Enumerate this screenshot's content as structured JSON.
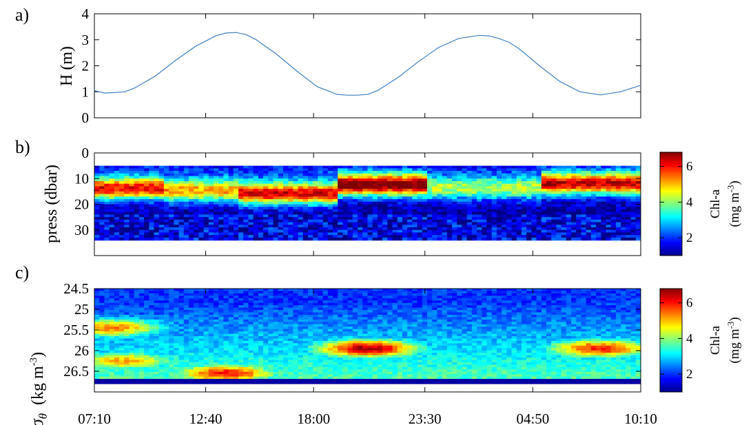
{
  "panel_labels": [
    "a)",
    "b)",
    "c)"
  ],
  "x_tick_labels": [
    "07:10",
    "12:40",
    "18:00",
    "23:30",
    "04:50",
    "10:10"
  ],
  "colorbar": {
    "label_line1": "Chl-a",
    "label_line2": "(mg m",
    "label_exp": "-3",
    "label_close": ")",
    "ticks": [
      "2",
      "4",
      "6"
    ],
    "range": [
      1,
      6.8
    ]
  },
  "chart_data": [
    {
      "type": "line",
      "panel": "a)",
      "ylabel": "H (m)",
      "ylim": [
        0,
        4
      ],
      "yticks": [
        "0",
        "1",
        "2",
        "3",
        "4"
      ],
      "x_hours": [
        0,
        0.5,
        1,
        1.5,
        2,
        3,
        4,
        5,
        6,
        6.5,
        7,
        7.5,
        8,
        9,
        10,
        11,
        12,
        12.5,
        13,
        13.5,
        14,
        15,
        16,
        17,
        18,
        19,
        19.5,
        20,
        20.5,
        21,
        22,
        23,
        24,
        25,
        26,
        27
      ],
      "values": [
        1.05,
        0.95,
        0.97,
        1.0,
        1.15,
        1.6,
        2.2,
        2.75,
        3.15,
        3.26,
        3.28,
        3.2,
        3.0,
        2.45,
        1.8,
        1.2,
        0.9,
        0.87,
        0.87,
        0.9,
        1.05,
        1.55,
        2.15,
        2.7,
        3.05,
        3.17,
        3.15,
        3.05,
        2.9,
        2.65,
        2.0,
        1.4,
        1.0,
        0.88,
        1.0,
        1.25
      ],
      "color": "#3d7fbf"
    },
    {
      "type": "heatmap",
      "panel": "b)",
      "ylabel": "press (dbar)",
      "ylim": [
        0,
        40
      ],
      "yticks": [
        "0",
        "10",
        "20",
        "30"
      ],
      "depth_range": [
        5,
        34
      ],
      "bands": [
        {
          "start": 0,
          "end": 3.5,
          "center": 14,
          "peak": 5.5
        },
        {
          "start": 3.5,
          "end": 7,
          "center": 15,
          "peak": 4.6
        },
        {
          "start": 7,
          "end": 12,
          "center": 16,
          "peak": 5.8
        },
        {
          "start": 12,
          "end": 16.5,
          "center": 12.5,
          "peak": 6.3
        },
        {
          "start": 16.5,
          "end": 22,
          "center": 14,
          "peak": 3.6
        },
        {
          "start": 22,
          "end": 27,
          "center": 12,
          "peak": 5.6
        }
      ]
    },
    {
      "type": "heatmap",
      "panel": "c)",
      "ylabel": "σθ (kg m⁻³)",
      "ylim": [
        24.5,
        27.0
      ],
      "yticks": [
        "24.5",
        "25",
        "25.5",
        "26",
        "26.5"
      ],
      "patches": [
        {
          "x": 0.8,
          "y": 25.45,
          "value": 5.4
        },
        {
          "x": 1.5,
          "y": 26.25,
          "value": 5.1
        },
        {
          "x": 6.5,
          "y": 26.55,
          "value": 6.0
        },
        {
          "x": 13.5,
          "y": 25.95,
          "value": 6.6
        },
        {
          "x": 25.0,
          "y": 25.95,
          "value": 6.0
        }
      ]
    }
  ]
}
